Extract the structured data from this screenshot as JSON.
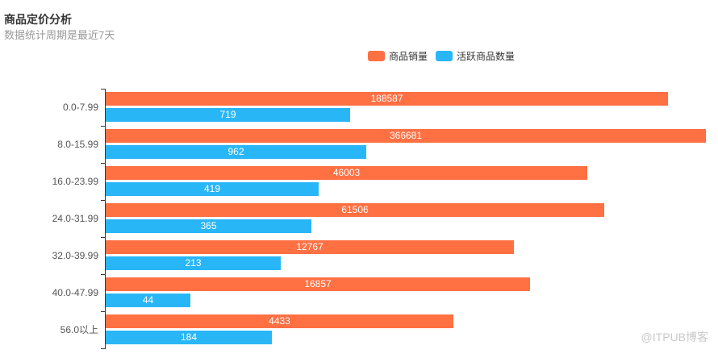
{
  "header": {
    "title": "商品定价分析",
    "subtitle": "数据统计周期是最近7天"
  },
  "watermark": "@ITPUB博客",
  "colors": {
    "sales_bar": "#FF7043",
    "active_bar": "#29B6F6",
    "axis": "#333333",
    "category_label": "#555555",
    "value_label": "#ffffff",
    "title": "#333333",
    "subtitle": "#999999",
    "watermark": "#c9c9c9"
  },
  "chart_data": {
    "type": "bar",
    "orientation": "horizontal",
    "title": "商品定价分析",
    "subtitle": "数据统计周期是最近7天",
    "categories": [
      "0.0-7.99",
      "8.0-15.99",
      "16.0-23.99",
      "24.0-31.99",
      "32.0-39.99",
      "40.0-47.99",
      "56.0以上"
    ],
    "series": [
      {
        "name": "商品销量",
        "color": "#FF7043",
        "values": [
          188587,
          366681,
          46003,
          61506,
          12767,
          16857,
          4433
        ]
      },
      {
        "name": "活跃商品数量",
        "color": "#29B6F6",
        "values": [
          719,
          962,
          419,
          365,
          213,
          44,
          184
        ]
      }
    ],
    "x_scale": "log10",
    "xlim": [
      10,
      460000
    ],
    "grid": false,
    "x_axis_visible": false,
    "legend_position": "top",
    "value_labels_position": "inside-center"
  }
}
